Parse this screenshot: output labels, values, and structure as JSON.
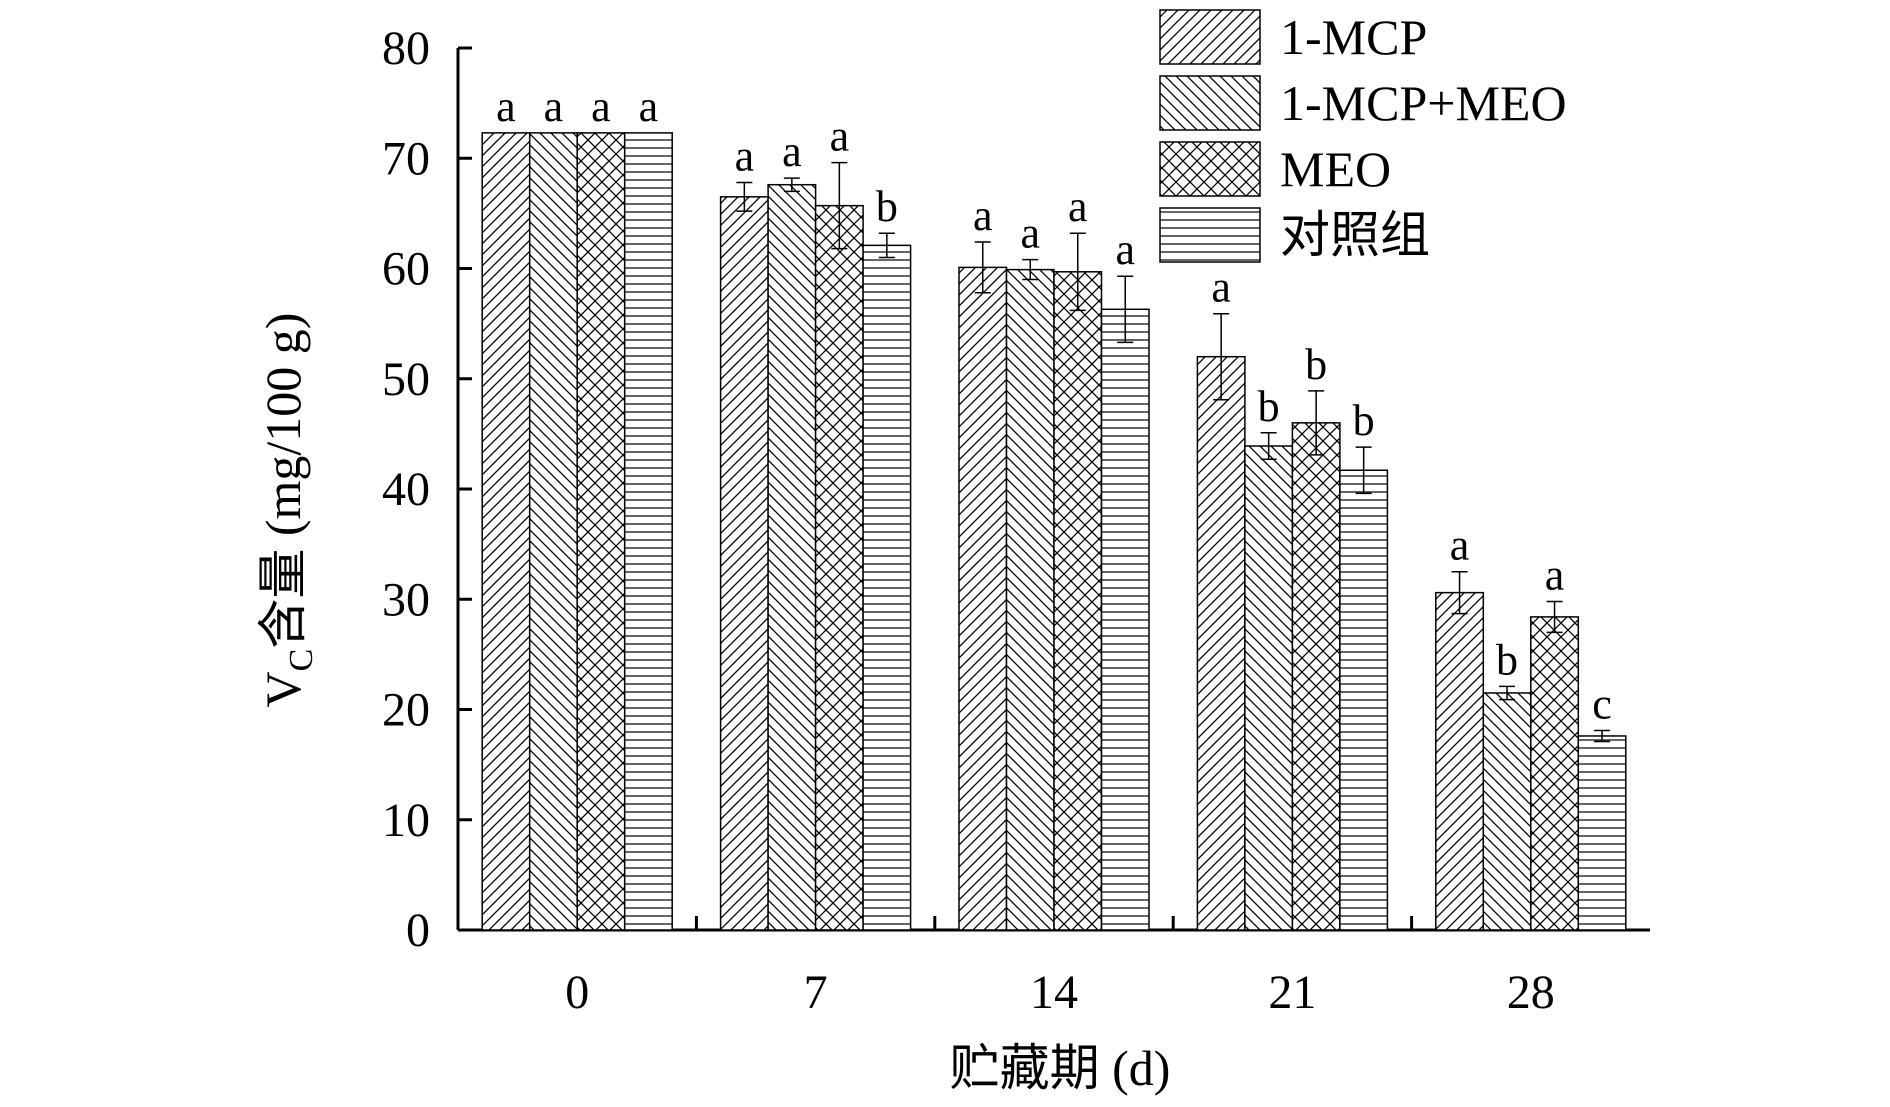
{
  "chart_data": {
    "type": "bar",
    "xlabel": "贮藏期 (d)",
    "ylabel": {
      "main": "V",
      "subscript": "C",
      "rest": "含量 (mg/100 g)"
    },
    "ylim": [
      0,
      80
    ],
    "yticks": [
      0,
      10,
      20,
      30,
      40,
      50,
      60,
      70,
      80
    ],
    "categories": [
      "0",
      "7",
      "14",
      "21",
      "28"
    ],
    "legend_position": "top-right",
    "series": [
      {
        "name": "1-MCP",
        "pattern": "diagonal-forward",
        "values": [
          72.3,
          66.5,
          60.1,
          52.0,
          30.6
        ],
        "errors": [
          0,
          1.3,
          2.3,
          3.9,
          1.9
        ],
        "labels": [
          "a",
          "a",
          "a",
          "a",
          "a"
        ]
      },
      {
        "name": "1-MCP+MEO",
        "pattern": "diagonal-backward",
        "values": [
          72.3,
          67.6,
          59.9,
          43.9,
          21.5
        ],
        "errors": [
          0,
          0.6,
          0.9,
          1.2,
          0.6
        ],
        "labels": [
          "a",
          "a",
          "a",
          "b",
          "b"
        ]
      },
      {
        "name": "MEO",
        "pattern": "crosshatch",
        "values": [
          72.3,
          65.7,
          59.7,
          46.0,
          28.4
        ],
        "errors": [
          0,
          3.9,
          3.5,
          2.9,
          1.4
        ],
        "labels": [
          "a",
          "a",
          "a",
          "b",
          "a"
        ]
      },
      {
        "name": "对照组",
        "pattern": "horizontal",
        "values": [
          72.3,
          62.1,
          56.3,
          41.7,
          17.6
        ],
        "errors": [
          0,
          1.1,
          3.0,
          2.1,
          0.5
        ],
        "labels": [
          "a",
          "b",
          "a",
          "b",
          "c"
        ]
      }
    ]
  }
}
